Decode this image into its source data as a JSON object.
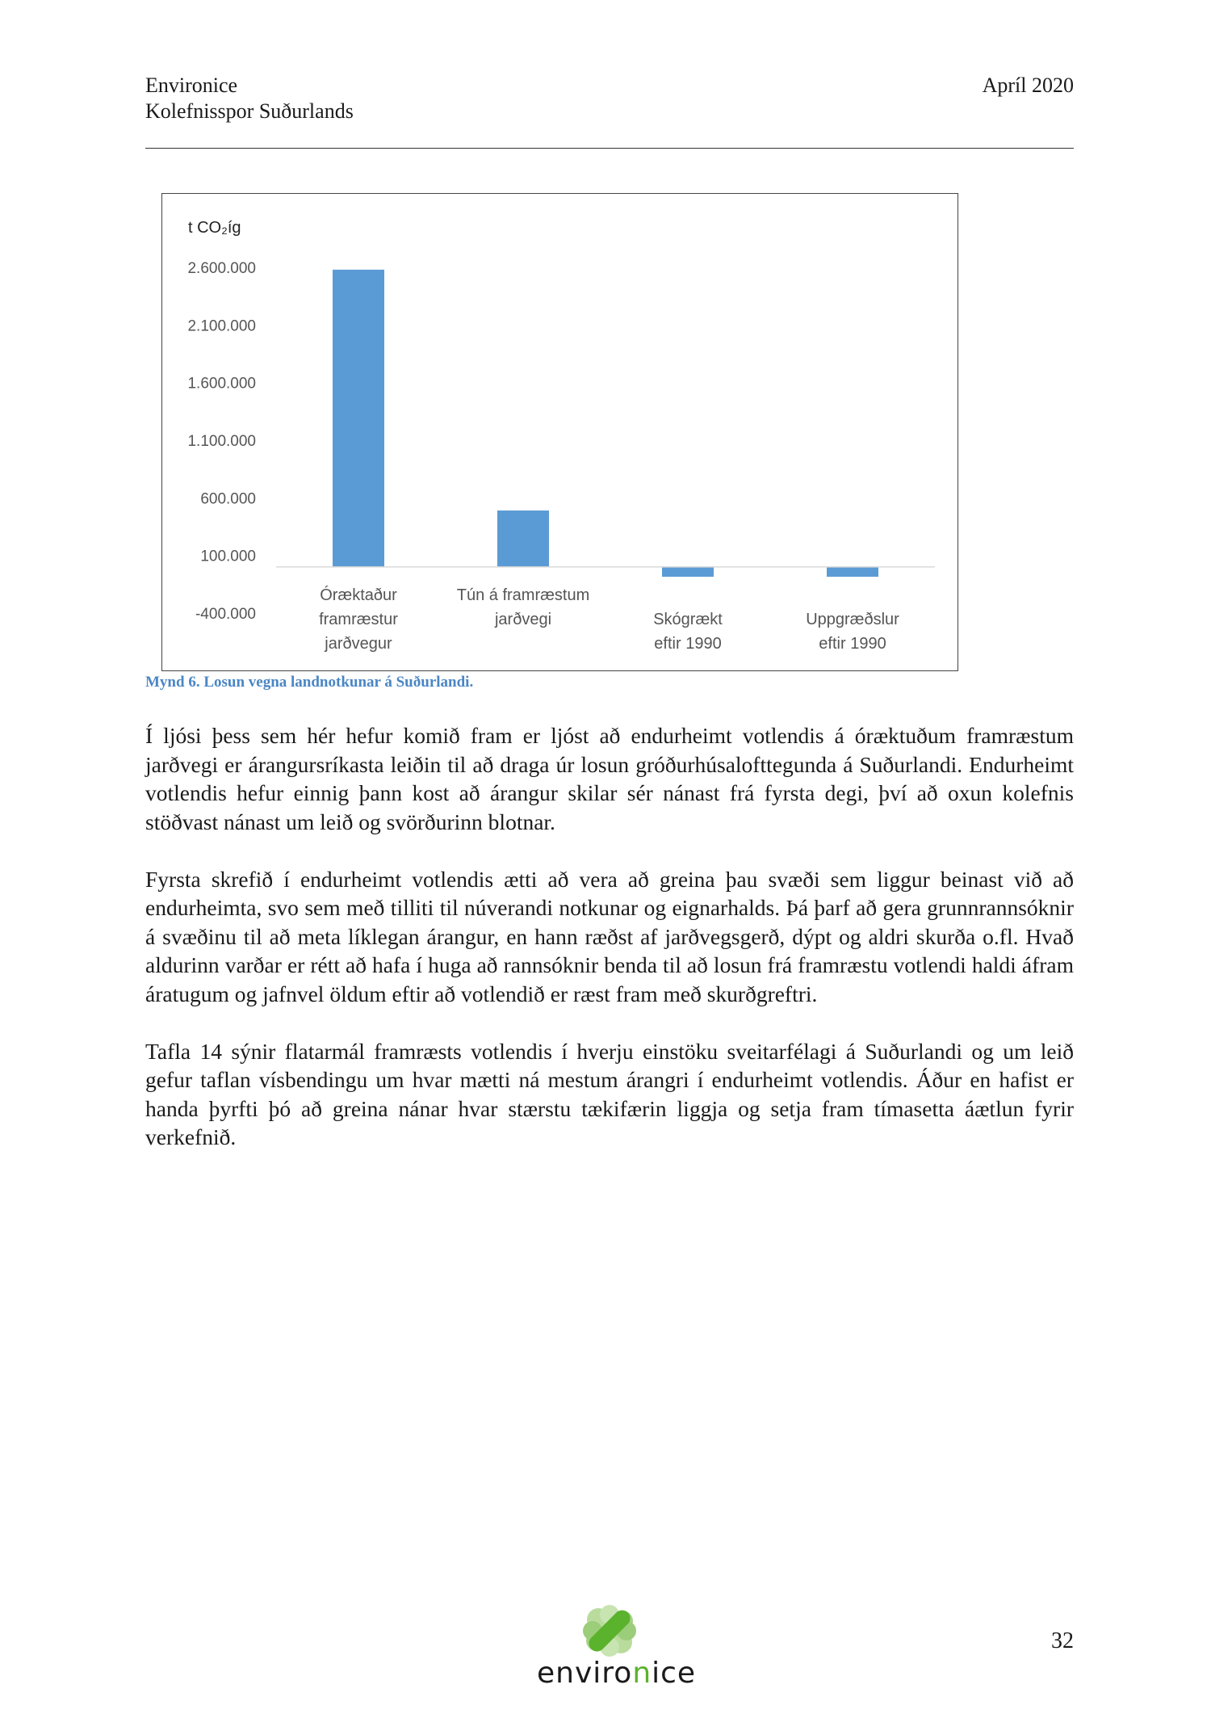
{
  "header": {
    "org": "Environice",
    "subtitle": "Kolefnisspor Suðurlands",
    "date": "Apríl 2020"
  },
  "chart_data": {
    "type": "bar",
    "ylabel": "t CO₂íg",
    "categories": [
      [
        "Óræktaður",
        "framræstur",
        "jarðvegur"
      ],
      [
        "Tún á framræstum",
        "jarðvegi"
      ],
      [
        "Skógrækt",
        "eftir 1990"
      ],
      [
        "Uppgræðslur",
        "eftir 1990"
      ]
    ],
    "values": [
      2580000,
      490000,
      -85000,
      -85000
    ],
    "yticks": [
      2600000,
      2100000,
      1600000,
      1100000,
      600000,
      100000,
      -400000
    ],
    "ytick_labels": [
      "2.600.000",
      "2.100.000",
      "1.600.000",
      "1.100.000",
      "600.000",
      "100.000",
      "-400.000"
    ],
    "ylim": [
      -400000,
      2600000
    ],
    "bar_color": "#5b9bd5",
    "grid": false
  },
  "caption": "Mynd 6. Losun vegna landnotkunar á Suðurlandi.",
  "paragraphs": [
    "Í ljósi þess sem hér hefur komið fram er ljóst að endurheimt votlendis á óræktuðum framræstum jarðvegi er árangursríkasta leiðin til að draga úr losun gróðurhúsalofttegunda á Suðurlandi. Endurheimt votlendis hefur einnig þann kost að árangur skilar sér nánast frá fyrsta degi, því að oxun kolefnis stöðvast nánast um leið og svörðurinn blotnar.",
    "Fyrsta skrefið í endurheimt votlendis ætti að vera að greina þau svæði sem liggur beinast við að endurheimta, svo sem með tilliti til núverandi notkunar og eignarhalds. Þá þarf að gera grunnrannsóknir á svæðinu til að meta líklegan árangur, en hann ræðst af jarðvegsgerð, dýpt og aldri skurða o.fl. Hvað aldurinn varðar er rétt að hafa í huga að rannsóknir benda til að losun frá framræstu votlendi haldi áfram áratugum og jafnvel öldum eftir að votlendið er ræst fram með skurðgreftri.",
    "Tafla 14 sýnir flatarmál framræsts votlendis í hverju einstöku sveitarfélagi á Suðurlandi og um leið gefur taflan vísbendingu um hvar mætti ná mestum árangri í endurheimt votlendis. Áður en hafist er handa þyrfti þó að greina nánar hvar stærstu tækifærin liggja og setja fram tímasetta áætlun fyrir verkefnið."
  ],
  "footer": {
    "page_number": "32",
    "logo_text": "environice"
  }
}
